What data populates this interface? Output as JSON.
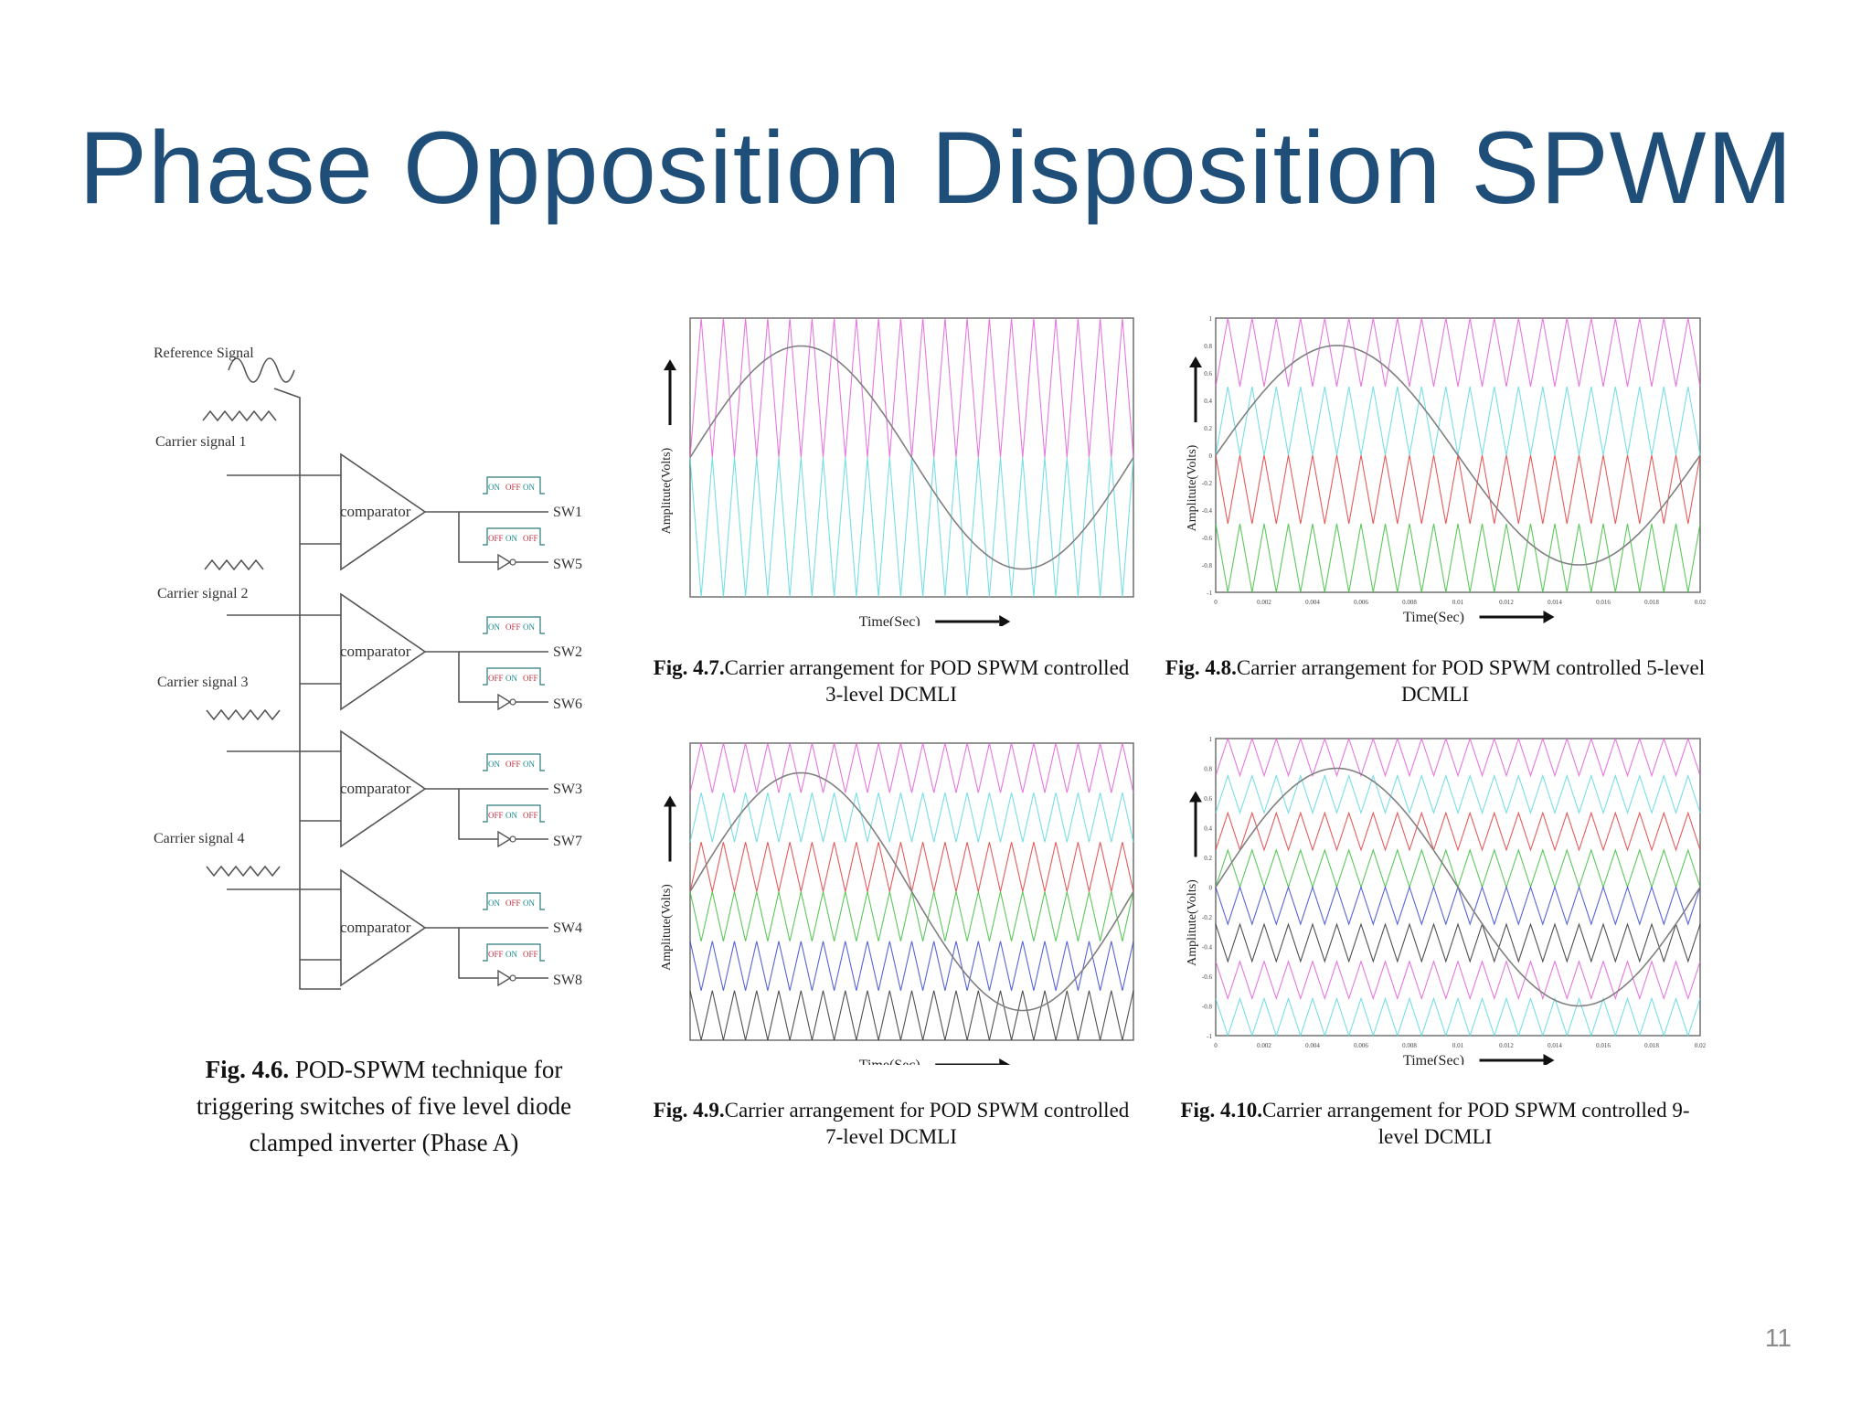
{
  "slide": {
    "title": "Phase Opposition Disposition SPWM",
    "page_number": "11"
  },
  "diagram": {
    "reference_label": "Reference  Signal",
    "carrier_labels": [
      "Carrier signal 1",
      "Carrier signal 2",
      "Carrier signal 3",
      "Carrier signal 4"
    ],
    "comparator_label": "comparator",
    "switches": [
      {
        "upper": "SW1",
        "lower": "SW5"
      },
      {
        "upper": "SW2",
        "lower": "SW6"
      },
      {
        "upper": "SW3",
        "lower": "SW7"
      },
      {
        "upper": "SW4",
        "lower": "SW8"
      }
    ],
    "pulse_on": "ON",
    "pulse_off": "OFF",
    "caption_bold": "Fig. 4.6.",
    "caption_text": " POD-SPWM technique for triggering switches of five level diode clamped inverter (Phase A)"
  },
  "charts": [
    {
      "id": "fig47",
      "caption_bold": "Fig. 4.7.",
      "caption_text": "Carrier arrangement for POD SPWM controlled 3-level DCMLI",
      "xlabel": "Time(Sec)",
      "ylabel": "Amplitute(Volts)",
      "colors": [
        "#e060d8",
        "#60d8e0"
      ]
    },
    {
      "id": "fig48",
      "caption_bold": "Fig. 4.8.",
      "caption_text": "Carrier arrangement for POD SPWM controlled 5-level DCMLI",
      "xlabel": "Time(Sec)",
      "ylabel": "Amplitute(Volts)",
      "colors": [
        "#e060d8",
        "#60d8e0",
        "#e04040",
        "#40c040"
      ]
    },
    {
      "id": "fig49",
      "caption_bold": "Fig. 4.9.",
      "caption_text": "Carrier arrangement for POD SPWM controlled 7-level DCMLI",
      "xlabel": "Time(Sec)",
      "ylabel": "Amplitute(Volts)",
      "colors": [
        "#e060d8",
        "#60d8e0",
        "#e04040",
        "#40c040",
        "#3a4ad0",
        "#333333"
      ]
    },
    {
      "id": "fig410",
      "caption_bold": "Fig. 4.10.",
      "caption_text": "Carrier arrangement for POD SPWM controlled 9-level DCMLI",
      "xlabel": "Time(Sec)",
      "ylabel": "Amplitute(Volts)",
      "colors": [
        "#e060d8",
        "#60d8e0",
        "#e04040",
        "#40c040",
        "#3a4ad0",
        "#333333",
        "#e060d8",
        "#60d8e0"
      ]
    }
  ],
  "chart_data": [
    {
      "type": "line",
      "title": "",
      "xlabel": "Time(Sec)",
      "ylabel": "Amplitute(Volts)",
      "xlim": [
        0,
        0.02
      ],
      "ylim": [
        -1,
        1
      ],
      "series": [
        {
          "kind": "sine",
          "amplitude": 0.8,
          "frequency_hz": 50,
          "color": "#808080"
        },
        {
          "kind": "triangle_carriers",
          "levels": 2,
          "carrier_cycles": 20
        }
      ]
    },
    {
      "type": "line",
      "title": "",
      "xlabel": "Time(Sec)",
      "ylabel": "Amplitute(Volts)",
      "xlim": [
        0,
        0.02
      ],
      "ylim": [
        -1,
        1
      ],
      "x_ticks": [
        "0",
        "0.002",
        "0.004",
        "0.006",
        "0.008",
        "0.01",
        "0.012",
        "0.014",
        "0.016",
        "0.018",
        "0.02"
      ],
      "y_ticks": [
        "-1",
        "-0.8",
        "-0.6",
        "-0.4",
        "-0.2",
        "0",
        "0.2",
        "0.4",
        "0.6",
        "0.8",
        "1"
      ],
      "series": [
        {
          "kind": "sine",
          "amplitude": 0.8,
          "frequency_hz": 50,
          "color": "#808080"
        },
        {
          "kind": "triangle_carriers",
          "levels": 4,
          "carrier_cycles": 20
        }
      ]
    },
    {
      "type": "line",
      "title": "",
      "xlabel": "Time(Sec)",
      "ylabel": "Amplitute(Volts)",
      "xlim": [
        0,
        0.02
      ],
      "ylim": [
        -1,
        1
      ],
      "series": [
        {
          "kind": "sine",
          "amplitude": 0.8,
          "frequency_hz": 50,
          "color": "#808080"
        },
        {
          "kind": "triangle_carriers",
          "levels": 6,
          "carrier_cycles": 20
        }
      ]
    },
    {
      "type": "line",
      "title": "",
      "xlabel": "Time(Sec)",
      "ylabel": "Amplitute(Volts)",
      "xlim": [
        0,
        0.02
      ],
      "ylim": [
        -1,
        1
      ],
      "x_ticks": [
        "0",
        "0.002",
        "0.004",
        "0.006",
        "0.008",
        "0.01",
        "0.012",
        "0.014",
        "0.016",
        "0.018",
        "0.02"
      ],
      "y_ticks": [
        "-1",
        "-0.8",
        "-0.6",
        "-0.4",
        "-0.2",
        "0",
        "0.2",
        "0.4",
        "0.6",
        "0.8",
        "1"
      ],
      "series": [
        {
          "kind": "sine",
          "amplitude": 0.8,
          "frequency_hz": 50,
          "color": "#808080"
        },
        {
          "kind": "triangle_carriers",
          "levels": 8,
          "carrier_cycles": 20
        }
      ]
    }
  ]
}
